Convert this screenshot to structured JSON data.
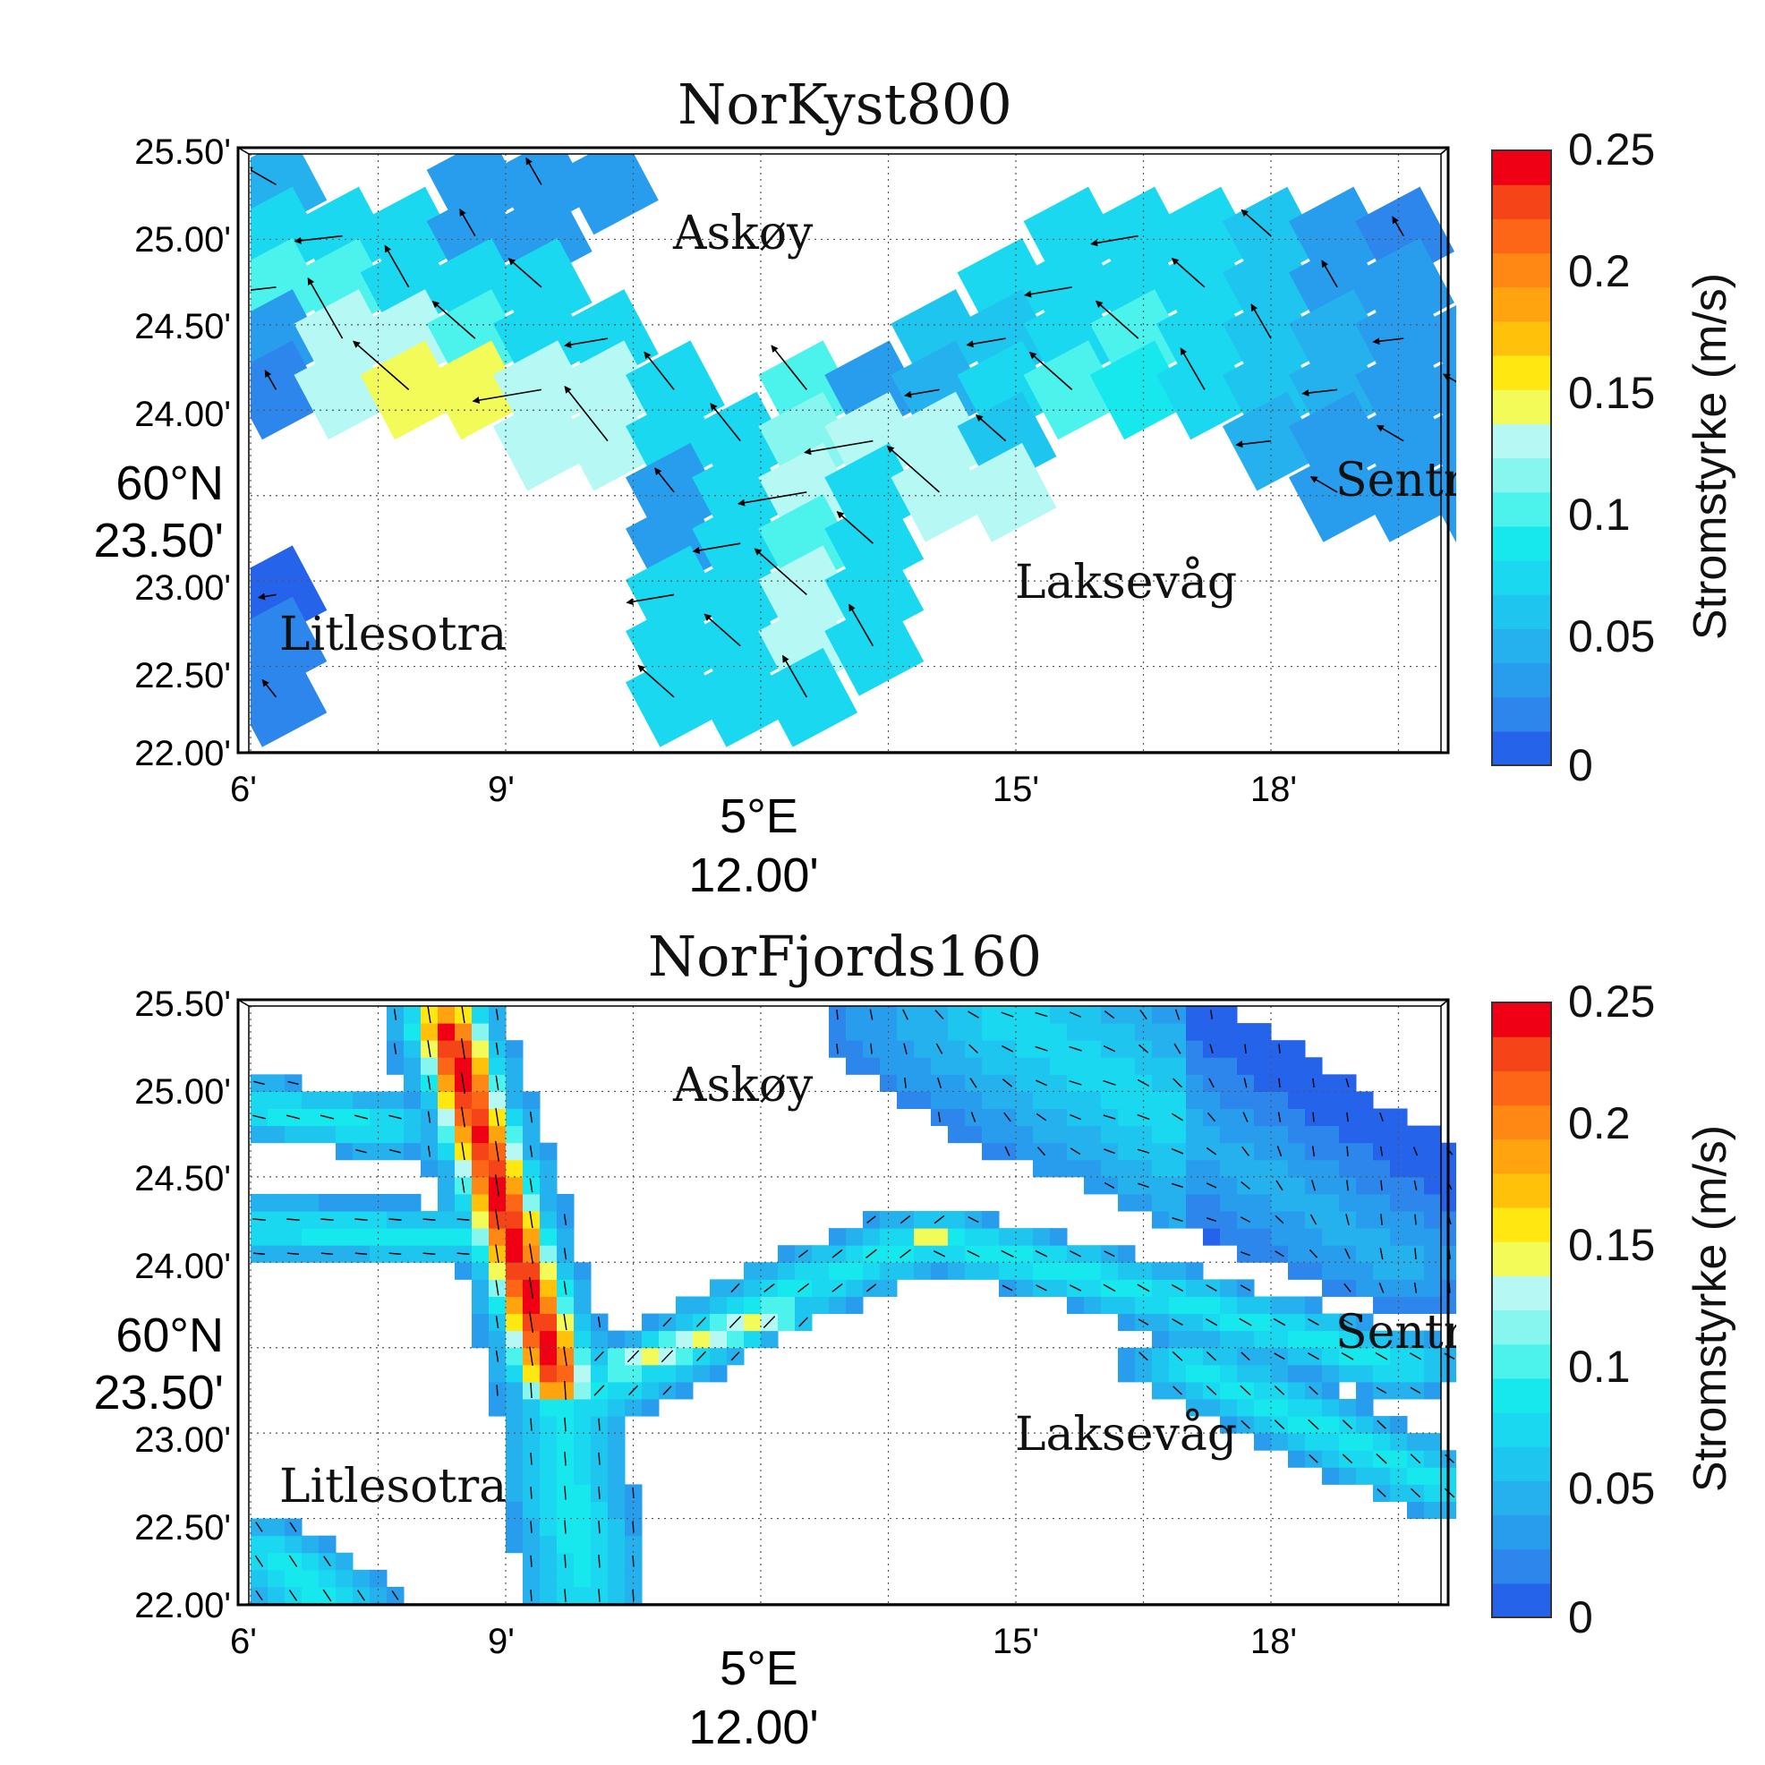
{
  "colors": {
    "scale": [
      "#2563ea",
      "#2d86ec",
      "#299ded",
      "#24b1ee",
      "#1ec6ef",
      "#19d8ef",
      "#16e8ee",
      "#4cf2ec",
      "#87f6ef",
      "#b6f8f4",
      "#f3fb58",
      "#ffe712",
      "#ffc10a",
      "#ffa40e",
      "#ff8714",
      "#fd6517",
      "#f54518",
      "#f00014"
    ],
    "vector": "#000000",
    "grid": "#555555"
  },
  "chart_data": [
    {
      "type": "heatmap",
      "title": "NorKyst800",
      "ylabel_deg": "60°N",
      "ylabel_sub": "23.50'",
      "xlabel_deg": "5°E",
      "xlabel_sub": "12.00'",
      "xlim": [
        6,
        20
      ],
      "ylim": [
        22.0,
        25.5
      ],
      "xticks": [
        6,
        9,
        15,
        18
      ],
      "xtick_labels": [
        "6'",
        "9'",
        "15'",
        "18'"
      ],
      "yticks": [
        22.0,
        22.5,
        23.0,
        24.0,
        24.5,
        25.0,
        25.5
      ],
      "ytick_labels": [
        "22.00'",
        "22.50'",
        "23.00'",
        "24.00'",
        "24.50'",
        "25.00'",
        "25.50'"
      ],
      "place_labels": [
        {
          "text": "Askøy",
          "x": 11.8,
          "y": 25.0
        },
        {
          "text": "Sentrum",
          "x": 19.7,
          "y": 23.6
        },
        {
          "text": "Laksevåg",
          "x": 16.2,
          "y": 23.0
        },
        {
          "text": "Litlesotra",
          "x": 6.5,
          "y": 22.7
        }
      ],
      "colorbar": {
        "label": "Stromstyrke (m/s)",
        "ticks": [
          0,
          0.05,
          0.1,
          0.15,
          0.2,
          0.25
        ],
        "tick_labels": [
          "0",
          "0.05",
          "0.1",
          "0.15",
          "0.2",
          "0.25"
        ]
      },
      "grid_spacing": [
        1,
        1
      ],
      "rows": [
        {
          "y": 25.32,
          "x0": 6.3,
          "v": [
            0.05,
            0,
            0,
            0.04,
            0.04,
            0.04
          ]
        },
        {
          "y": 25.02,
          "x0": 6.3,
          "v": [
            0.08,
            0.08,
            0.08,
            0.04,
            0.04,
            0,
            0,
            0,
            0,
            0,
            0,
            0,
            0.08,
            0.08,
            0.07,
            0.06,
            0.04,
            0.02
          ]
        },
        {
          "y": 24.72,
          "x0": 6.3,
          "v": [
            0.1,
            0.1,
            0.08,
            0.08,
            0.07,
            0,
            0,
            0,
            0,
            0,
            0,
            0.08,
            0.08,
            0.08,
            0.07,
            0.06,
            0.04,
            0.04
          ]
        },
        {
          "y": 24.42,
          "x0": 6.3,
          "v": [
            0.04,
            0.13,
            0.13,
            0.1,
            0.08,
            0.07,
            0,
            0,
            0,
            0,
            0.06,
            0.06,
            0.08,
            0.1,
            0.08,
            0.06,
            0.05,
            0.04,
            0.04
          ]
        },
        {
          "y": 24.12,
          "x0": 6.3,
          "v": [
            0.02,
            0.13,
            0.14,
            0.14,
            0.13,
            0.13,
            0.08,
            0,
            0.1,
            0.03,
            0.05,
            0.08,
            0.1,
            0.09,
            0.08,
            0.06,
            0.05,
            0.04,
            0.04
          ]
        },
        {
          "y": 23.82,
          "x0": 6.3,
          "v": [
            0,
            0,
            0,
            0,
            0.13,
            0.13,
            0.08,
            0.08,
            0.12,
            0.13,
            0.13,
            0.06,
            0,
            0,
            0,
            0.05,
            0.04,
            0.04,
            0.04
          ]
        },
        {
          "y": 23.52,
          "x0": 6.3,
          "v": [
            0,
            0,
            0,
            0,
            0,
            0,
            0.04,
            0.08,
            0.13,
            0.08,
            0.13,
            0.13,
            0,
            0,
            0,
            0,
            0.04,
            0.04,
            0.04
          ]
        },
        {
          "y": 23.22,
          "x0": 6.3,
          "v": [
            0,
            0,
            0,
            0,
            0,
            0,
            0.04,
            0.08,
            0.1,
            0.08
          ]
        },
        {
          "y": 22.92,
          "x0": 6.3,
          "v": [
            0.01,
            0,
            0,
            0,
            0,
            0,
            0.08,
            0.08,
            0.13,
            0.08
          ]
        },
        {
          "y": 22.62,
          "x0": 6.3,
          "v": [
            0.02,
            0,
            0,
            0,
            0,
            0,
            0.08,
            0.08,
            0.13,
            0.08
          ]
        },
        {
          "y": 22.32,
          "x0": 6.3,
          "v": [
            0.02,
            0,
            0,
            0,
            0,
            0,
            0.08,
            0.08,
            0.08
          ]
        }
      ]
    },
    {
      "type": "heatmap",
      "title": "NorFjords160",
      "ylabel_deg": "60°N",
      "ylabel_sub": "23.50'",
      "xlabel_deg": "5°E",
      "xlabel_sub": "12.00'",
      "xlim": [
        6,
        20
      ],
      "ylim": [
        22.0,
        25.5
      ],
      "xticks": [
        6,
        9,
        15,
        18
      ],
      "xtick_labels": [
        "6'",
        "9'",
        "15'",
        "18'"
      ],
      "yticks": [
        22.0,
        22.5,
        23.0,
        24.0,
        24.5,
        25.0,
        25.5
      ],
      "ytick_labels": [
        "22.00'",
        "22.50'",
        "23.00'",
        "24.00'",
        "24.50'",
        "25.00'",
        "25.50'"
      ],
      "place_labels": [
        {
          "text": "Askøy",
          "x": 11.8,
          "y": 25.0
        },
        {
          "text": "Sentrum",
          "x": 19.7,
          "y": 23.6
        },
        {
          "text": "Laksevåg",
          "x": 16.2,
          "y": 23.0
        },
        {
          "text": "Litlesotra",
          "x": 6.5,
          "y": 22.7
        }
      ],
      "colorbar": {
        "label": "Stromstyrke (m/s)",
        "ticks": [
          0,
          0.05,
          0.1,
          0.15,
          0.2,
          0.25
        ],
        "tick_labels": [
          "0",
          "0.05",
          "0.1",
          "0.15",
          "0.2",
          "0.25"
        ]
      },
      "grid_spacing": [
        0.2,
        0.1
      ],
      "jet_features": [
        {
          "name": "strait jet",
          "from": [
            8.3,
            25.4
          ],
          "to": [
            9.6,
            23.3
          ],
          "peak": 0.24
        },
        {
          "name": "southern jet",
          "from": [
            10.4,
            23.4
          ],
          "to": [
            12.2,
            23.7
          ],
          "peak": 0.14
        },
        {
          "name": "local maximum",
          "at": [
            14.0,
            24.15
          ],
          "peak": 0.15
        }
      ]
    }
  ]
}
